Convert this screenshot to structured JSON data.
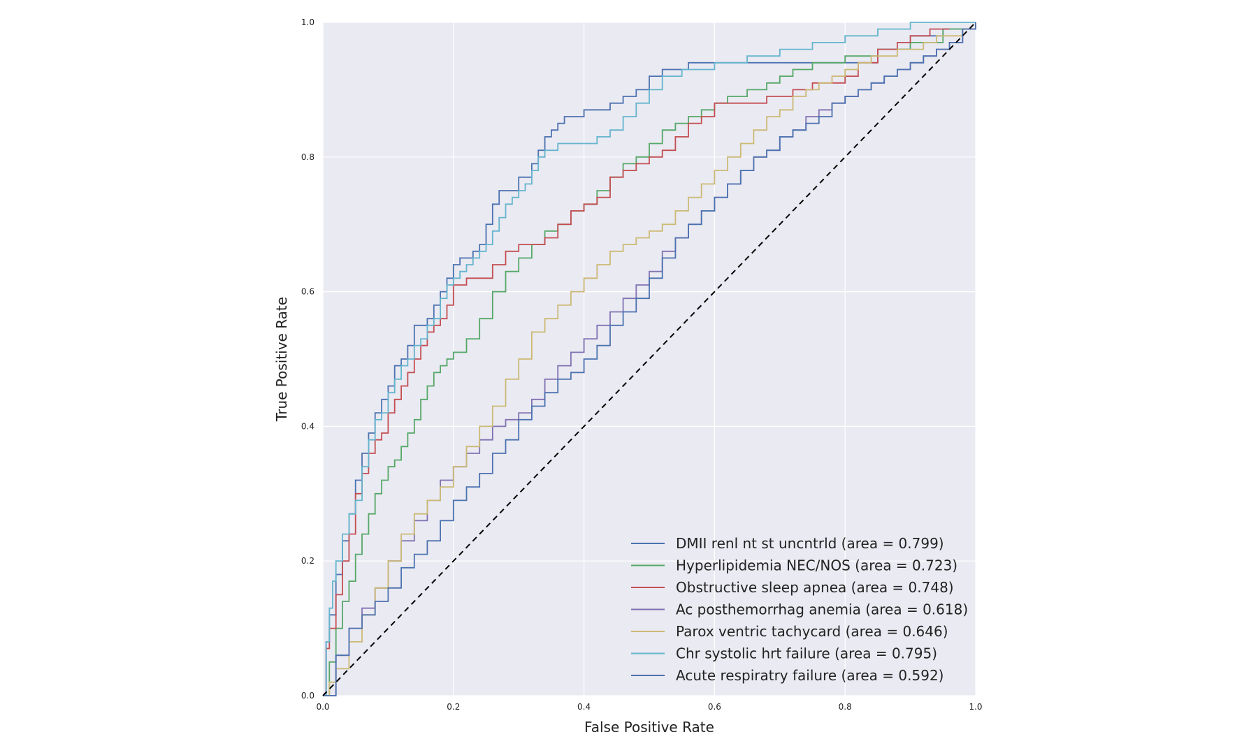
{
  "chart_data": {
    "type": "line",
    "title": "",
    "xlabel": "False Positive Rate",
    "ylabel": "True Positive Rate",
    "xlim": [
      0.0,
      1.0
    ],
    "ylim": [
      0.0,
      1.0
    ],
    "xticks": [
      "0.0",
      "0.2",
      "0.4",
      "0.6",
      "0.8",
      "1.0"
    ],
    "yticks": [
      "0.0",
      "0.2",
      "0.4",
      "0.6",
      "0.8",
      "1.0"
    ],
    "grid": true,
    "legend_position": "bottom-right",
    "background": "#eaeaf2",
    "reference_line": {
      "x": [
        0,
        1
      ],
      "y": [
        0,
        1
      ],
      "style": "dashed",
      "color": "#000000"
    },
    "series": [
      {
        "name": "DMII renl nt st uncntrld (area = 0.799)",
        "color": "#4c72b0",
        "x": [
          0,
          0.005,
          0.01,
          0.02,
          0.03,
          0.04,
          0.05,
          0.06,
          0.07,
          0.08,
          0.09,
          0.1,
          0.11,
          0.12,
          0.13,
          0.14,
          0.15,
          0.16,
          0.17,
          0.18,
          0.19,
          0.2,
          0.21,
          0.22,
          0.23,
          0.24,
          0.25,
          0.26,
          0.27,
          0.28,
          0.3,
          0.32,
          0.33,
          0.34,
          0.35,
          0.36,
          0.37,
          0.38,
          0.4,
          0.42,
          0.44,
          0.46,
          0.48,
          0.5,
          0.52,
          0.54,
          0.56,
          0.6,
          0.65,
          0.7,
          0.75,
          0.8,
          0.85,
          0.9,
          0.95,
          1.0
        ],
        "y": [
          0,
          0.08,
          0.12,
          0.18,
          0.23,
          0.27,
          0.32,
          0.36,
          0.39,
          0.42,
          0.44,
          0.46,
          0.49,
          0.5,
          0.52,
          0.55,
          0.55,
          0.56,
          0.58,
          0.6,
          0.62,
          0.64,
          0.65,
          0.65,
          0.66,
          0.67,
          0.7,
          0.73,
          0.75,
          0.75,
          0.77,
          0.79,
          0.81,
          0.83,
          0.84,
          0.85,
          0.86,
          0.86,
          0.87,
          0.87,
          0.88,
          0.89,
          0.9,
          0.92,
          0.93,
          0.93,
          0.94,
          0.94,
          0.94,
          0.94,
          0.94,
          0.94,
          0.96,
          0.98,
          0.99,
          1.0
        ]
      },
      {
        "name": "Hyperlipidemia NEC/NOS (area = 0.723)",
        "color": "#55a868",
        "x": [
          0,
          0.01,
          0.02,
          0.03,
          0.04,
          0.05,
          0.06,
          0.07,
          0.08,
          0.09,
          0.1,
          0.11,
          0.12,
          0.13,
          0.14,
          0.15,
          0.16,
          0.17,
          0.18,
          0.19,
          0.2,
          0.22,
          0.24,
          0.26,
          0.28,
          0.3,
          0.32,
          0.34,
          0.36,
          0.38,
          0.4,
          0.42,
          0.44,
          0.46,
          0.48,
          0.5,
          0.52,
          0.54,
          0.56,
          0.58,
          0.6,
          0.62,
          0.65,
          0.68,
          0.7,
          0.72,
          0.75,
          0.8,
          0.85,
          0.9,
          0.95,
          1.0
        ],
        "y": [
          0,
          0.05,
          0.1,
          0.14,
          0.17,
          0.21,
          0.24,
          0.27,
          0.3,
          0.32,
          0.34,
          0.35,
          0.37,
          0.39,
          0.41,
          0.44,
          0.46,
          0.48,
          0.49,
          0.5,
          0.51,
          0.53,
          0.56,
          0.6,
          0.63,
          0.65,
          0.67,
          0.69,
          0.7,
          0.72,
          0.73,
          0.75,
          0.77,
          0.79,
          0.8,
          0.82,
          0.84,
          0.85,
          0.86,
          0.87,
          0.88,
          0.89,
          0.9,
          0.91,
          0.92,
          0.93,
          0.94,
          0.95,
          0.96,
          0.97,
          0.99,
          1.0
        ]
      },
      {
        "name": "Obstructive sleep apnea (area = 0.748)",
        "color": "#c44e52",
        "x": [
          0,
          0.005,
          0.01,
          0.02,
          0.03,
          0.04,
          0.05,
          0.06,
          0.07,
          0.08,
          0.09,
          0.1,
          0.11,
          0.12,
          0.13,
          0.14,
          0.15,
          0.16,
          0.17,
          0.18,
          0.19,
          0.2,
          0.22,
          0.24,
          0.26,
          0.28,
          0.3,
          0.32,
          0.34,
          0.36,
          0.38,
          0.4,
          0.42,
          0.44,
          0.46,
          0.48,
          0.5,
          0.52,
          0.54,
          0.56,
          0.58,
          0.6,
          0.62,
          0.65,
          0.68,
          0.7,
          0.72,
          0.75,
          0.78,
          0.8,
          0.82,
          0.85,
          0.88,
          0.9,
          0.93,
          0.96
        ],
        "y": [
          0,
          0.07,
          0.1,
          0.15,
          0.2,
          0.24,
          0.3,
          0.33,
          0.36,
          0.38,
          0.39,
          0.42,
          0.44,
          0.46,
          0.48,
          0.5,
          0.52,
          0.54,
          0.55,
          0.56,
          0.58,
          0.61,
          0.62,
          0.62,
          0.64,
          0.66,
          0.67,
          0.67,
          0.68,
          0.7,
          0.72,
          0.73,
          0.74,
          0.77,
          0.78,
          0.79,
          0.8,
          0.81,
          0.83,
          0.85,
          0.86,
          0.88,
          0.88,
          0.88,
          0.89,
          0.89,
          0.9,
          0.91,
          0.91,
          0.92,
          0.94,
          0.96,
          0.97,
          0.98,
          0.99,
          0.99
        ]
      },
      {
        "name": "Ac posthemorrhag anemia (area = 0.618)",
        "color": "#8172b2",
        "x": [
          0,
          0.02,
          0.04,
          0.06,
          0.08,
          0.1,
          0.12,
          0.14,
          0.16,
          0.18,
          0.2,
          0.22,
          0.24,
          0.26,
          0.28,
          0.3,
          0.32,
          0.34,
          0.36,
          0.38,
          0.4,
          0.42,
          0.44,
          0.46,
          0.48,
          0.5,
          0.52,
          0.54,
          0.56,
          0.58,
          0.6,
          0.62,
          0.64,
          0.66,
          0.68,
          0.7,
          0.72,
          0.74,
          0.76,
          0.78,
          0.8,
          0.82,
          0.84,
          0.86,
          0.88,
          0.9,
          0.92,
          0.94,
          0.96,
          0.98,
          1.0
        ],
        "y": [
          0,
          0.06,
          0.1,
          0.13,
          0.16,
          0.2,
          0.23,
          0.26,
          0.29,
          0.32,
          0.34,
          0.36,
          0.38,
          0.4,
          0.41,
          0.42,
          0.44,
          0.47,
          0.49,
          0.51,
          0.53,
          0.55,
          0.57,
          0.59,
          0.61,
          0.63,
          0.66,
          0.68,
          0.7,
          0.72,
          0.74,
          0.76,
          0.78,
          0.8,
          0.81,
          0.83,
          0.84,
          0.86,
          0.87,
          0.88,
          0.89,
          0.9,
          0.91,
          0.92,
          0.93,
          0.94,
          0.95,
          0.96,
          0.97,
          0.99,
          1.0
        ]
      },
      {
        "name": "Parox ventric tachycard (area = 0.646)",
        "color": "#ccb974",
        "x": [
          0,
          0.01,
          0.02,
          0.04,
          0.06,
          0.08,
          0.1,
          0.12,
          0.14,
          0.16,
          0.18,
          0.2,
          0.22,
          0.24,
          0.26,
          0.28,
          0.3,
          0.32,
          0.34,
          0.36,
          0.38,
          0.4,
          0.42,
          0.44,
          0.46,
          0.48,
          0.5,
          0.52,
          0.54,
          0.56,
          0.58,
          0.6,
          0.62,
          0.64,
          0.66,
          0.68,
          0.7,
          0.72,
          0.74,
          0.76,
          0.78,
          0.8,
          0.82,
          0.84,
          0.86,
          0.88,
          0.9,
          0.92,
          0.94,
          0.96,
          0.98,
          1.0
        ],
        "y": [
          0,
          0.02,
          0.04,
          0.08,
          0.12,
          0.16,
          0.2,
          0.24,
          0.27,
          0.29,
          0.31,
          0.34,
          0.37,
          0.4,
          0.43,
          0.47,
          0.5,
          0.54,
          0.56,
          0.58,
          0.6,
          0.62,
          0.64,
          0.66,
          0.67,
          0.68,
          0.69,
          0.7,
          0.72,
          0.74,
          0.76,
          0.78,
          0.8,
          0.82,
          0.84,
          0.86,
          0.87,
          0.89,
          0.9,
          0.91,
          0.92,
          0.93,
          0.94,
          0.95,
          0.95,
          0.96,
          0.96,
          0.97,
          0.98,
          0.98,
          0.99,
          1.0
        ]
      },
      {
        "name": "Chr systolic hrt failure (area = 0.795)",
        "color": "#64b5cd",
        "x": [
          0,
          0.005,
          0.01,
          0.015,
          0.02,
          0.03,
          0.04,
          0.05,
          0.06,
          0.07,
          0.08,
          0.09,
          0.1,
          0.11,
          0.12,
          0.13,
          0.14,
          0.15,
          0.16,
          0.17,
          0.18,
          0.19,
          0.2,
          0.21,
          0.22,
          0.23,
          0.24,
          0.25,
          0.26,
          0.27,
          0.28,
          0.29,
          0.3,
          0.31,
          0.32,
          0.33,
          0.34,
          0.36,
          0.38,
          0.4,
          0.42,
          0.44,
          0.46,
          0.48,
          0.5,
          0.52,
          0.55,
          0.6,
          0.65,
          0.7,
          0.75,
          0.8,
          0.85,
          0.9,
          0.95,
          1.0
        ],
        "y": [
          0,
          0.08,
          0.13,
          0.17,
          0.2,
          0.24,
          0.27,
          0.29,
          0.34,
          0.38,
          0.41,
          0.42,
          0.45,
          0.47,
          0.49,
          0.5,
          0.52,
          0.53,
          0.55,
          0.56,
          0.59,
          0.61,
          0.62,
          0.63,
          0.64,
          0.65,
          0.66,
          0.67,
          0.69,
          0.71,
          0.73,
          0.74,
          0.75,
          0.76,
          0.78,
          0.8,
          0.81,
          0.82,
          0.82,
          0.82,
          0.83,
          0.84,
          0.86,
          0.88,
          0.9,
          0.92,
          0.93,
          0.94,
          0.95,
          0.96,
          0.97,
          0.98,
          0.99,
          1.0,
          1.0,
          1.0
        ]
      },
      {
        "name": "Acute respiratry failure (area = 0.592)",
        "color": "#4c72b0",
        "x": [
          0,
          0.02,
          0.04,
          0.06,
          0.08,
          0.1,
          0.12,
          0.14,
          0.16,
          0.18,
          0.2,
          0.22,
          0.24,
          0.26,
          0.28,
          0.3,
          0.32,
          0.34,
          0.36,
          0.38,
          0.4,
          0.42,
          0.44,
          0.46,
          0.48,
          0.5,
          0.52,
          0.54,
          0.56,
          0.58,
          0.6,
          0.62,
          0.64,
          0.66,
          0.68,
          0.7,
          0.72,
          0.74,
          0.76,
          0.78,
          0.8,
          0.82,
          0.84,
          0.86,
          0.88,
          0.9,
          0.92,
          0.94,
          0.96,
          0.98,
          1.0
        ],
        "y": [
          0,
          0.06,
          0.1,
          0.12,
          0.14,
          0.16,
          0.19,
          0.21,
          0.23,
          0.26,
          0.29,
          0.31,
          0.33,
          0.36,
          0.38,
          0.41,
          0.43,
          0.45,
          0.47,
          0.48,
          0.5,
          0.52,
          0.55,
          0.57,
          0.59,
          0.62,
          0.65,
          0.68,
          0.7,
          0.72,
          0.74,
          0.76,
          0.78,
          0.8,
          0.81,
          0.83,
          0.84,
          0.85,
          0.86,
          0.88,
          0.89,
          0.9,
          0.91,
          0.92,
          0.93,
          0.94,
          0.95,
          0.96,
          0.97,
          0.99,
          1.0
        ]
      }
    ]
  }
}
